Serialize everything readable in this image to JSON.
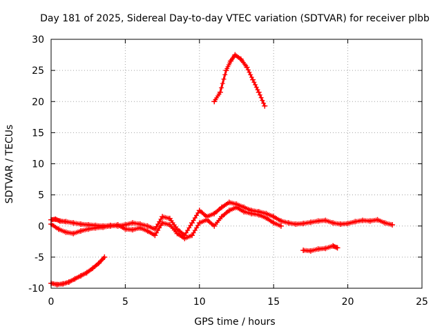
{
  "chart_data": {
    "type": "scatter",
    "title": "Day 181 of 2025, Sidereal Day-to-day VTEC variation (SDTVAR) for receiver plbb",
    "xlabel": "GPS time / hours",
    "ylabel": "SDTVAR / TECUs",
    "xlim": [
      0,
      25
    ],
    "ylim": [
      -10,
      30
    ],
    "xticks": [
      0,
      5,
      10,
      15,
      20,
      25
    ],
    "yticks": [
      -10,
      -5,
      0,
      5,
      10,
      15,
      20,
      25,
      30
    ],
    "grid": true,
    "marker": "+",
    "color": "#ff0000",
    "series": [
      {
        "name": "trace-1",
        "x": [
          0.0,
          0.3,
          0.6,
          1.0,
          1.5,
          2.0,
          2.5,
          3.0,
          3.5,
          4.0,
          4.5,
          5.0,
          5.5,
          6.0,
          6.5,
          7.0,
          7.5,
          8.0,
          8.5,
          9.0,
          9.5,
          10.0,
          10.5,
          11.0,
          11.5,
          12.0,
          12.5,
          13.0,
          13.5,
          14.0,
          14.5,
          15.0,
          15.5,
          16.0,
          16.5,
          17.0,
          17.5,
          18.0,
          18.5,
          19.0,
          19.5,
          20.0,
          20.5,
          21.0,
          21.5,
          22.0,
          22.5,
          23.0
        ],
        "y": [
          1.0,
          1.1,
          0.8,
          0.7,
          0.5,
          0.3,
          0.2,
          0.1,
          0.0,
          0.1,
          0.0,
          0.2,
          0.5,
          0.3,
          0.0,
          -0.5,
          1.5,
          1.2,
          -0.5,
          -1.5,
          0.5,
          2.5,
          1.5,
          2.0,
          3.0,
          3.8,
          3.5,
          3.0,
          2.5,
          2.3,
          2.0,
          1.5,
          0.8,
          0.5,
          0.3,
          0.4,
          0.6,
          0.8,
          0.9,
          0.5,
          0.3,
          0.4,
          0.7,
          0.9,
          0.8,
          1.0,
          0.5,
          0.2
        ]
      },
      {
        "name": "trace-2",
        "x": [
          0.0,
          0.5,
          1.0,
          1.5,
          2.0,
          2.5,
          3.0,
          3.5,
          4.0,
          4.5,
          5.0,
          5.5,
          6.0,
          6.5,
          7.0,
          7.5,
          8.0,
          8.5,
          9.0,
          9.5,
          10.0,
          10.5,
          11.0,
          11.5,
          12.0,
          12.5,
          13.0,
          13.5,
          14.0,
          14.5,
          15.0,
          15.5
        ],
        "y": [
          0.3,
          -0.5,
          -1.0,
          -1.2,
          -0.8,
          -0.5,
          -0.3,
          -0.2,
          0.0,
          0.2,
          -0.5,
          -0.6,
          -0.3,
          -0.8,
          -1.5,
          0.5,
          0.2,
          -1.2,
          -2.0,
          -1.5,
          0.5,
          1.0,
          0.0,
          1.5,
          2.5,
          3.0,
          2.3,
          2.0,
          1.8,
          1.3,
          0.5,
          0.0
        ]
      },
      {
        "name": "trace-3",
        "x": [
          0.0,
          0.4,
          0.8,
          1.2,
          1.6,
          2.0,
          2.4,
          2.8,
          3.2,
          3.6
        ],
        "y": [
          -9.2,
          -9.4,
          -9.3,
          -9.0,
          -8.5,
          -8.0,
          -7.5,
          -6.8,
          -6.0,
          -5.0
        ]
      },
      {
        "name": "trace-4",
        "x": [
          11.0,
          11.4,
          11.8,
          12.1,
          12.4,
          12.8,
          13.2,
          13.6,
          14.0,
          14.4
        ],
        "y": [
          20.0,
          21.5,
          25.0,
          26.5,
          27.5,
          26.8,
          25.5,
          23.5,
          21.5,
          19.3
        ]
      },
      {
        "name": "trace-5",
        "x": [
          17.0,
          17.5,
          18.0,
          18.5,
          19.0,
          19.3
        ],
        "y": [
          -3.9,
          -4.0,
          -3.7,
          -3.6,
          -3.2,
          -3.5
        ]
      }
    ]
  }
}
